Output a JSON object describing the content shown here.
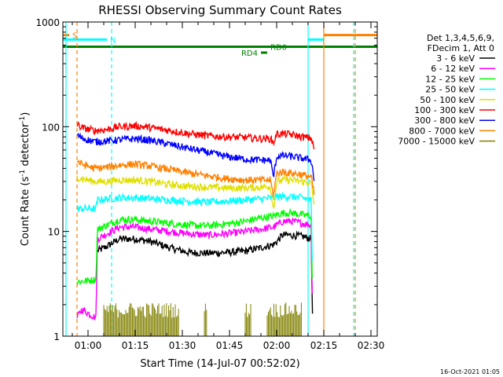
{
  "chart_data": {
    "type": "line",
    "title": "RHESSI Observing Summary Count Rates",
    "xlabel": "Start Time (14-Jul-07 00:52:02)",
    "ylabel_main": "Count Rate (s",
    "ylabel_sup1": "-1",
    "ylabel_mid": " detector",
    "ylabel_sup2": "-1",
    "ylabel_end": ")",
    "x_ticks": [
      "01:00",
      "01:15",
      "01:30",
      "01:45",
      "02:00",
      "02:15",
      "02:30"
    ],
    "x_tick_minutes": [
      60,
      75,
      90,
      105,
      120,
      135,
      150
    ],
    "xlim_minutes": [
      52,
      152
    ],
    "y_scale": "log",
    "ylim": [
      1,
      1000
    ],
    "y_ticks": [
      "1",
      "10",
      "100",
      "1000"
    ],
    "y_tick_values": [
      1,
      10,
      100,
      1000
    ],
    "legend_header": [
      "Det 1,3,4,5,6,9,",
      "FDecim 1, Att 0"
    ],
    "legend_position": "right",
    "timestamp": "16-Oct-2021 01:05",
    "series": [
      {
        "name": "3 - 6 keV",
        "color": "#000000",
        "x": [
          52,
          56.5,
          62.5,
          63,
          66,
          70,
          75,
          80,
          86,
          92,
          98,
          104,
          110,
          115,
          119,
          120,
          122,
          125,
          128,
          131,
          131.5
        ],
        "y": [
          null,
          null,
          null,
          6.5,
          7.2,
          8.5,
          8.5,
          8,
          7,
          6.3,
          6.2,
          6.3,
          6.5,
          7,
          7.5,
          8,
          9.3,
          9.2,
          9,
          8.5,
          1
        ]
      },
      {
        "name": "6 - 12 keV",
        "color": "#ff00ff",
        "x": [
          56.5,
          58,
          62.5,
          63,
          66,
          70,
          75,
          80,
          86,
          92,
          98,
          104,
          110,
          115,
          119,
          120,
          122,
          125,
          128,
          131,
          131.5
        ],
        "y": [
          1.5,
          1.8,
          1.5,
          8.5,
          9.5,
          11,
          11,
          10.5,
          10,
          9.5,
          9.2,
          9.5,
          10,
          10.5,
          11,
          11.5,
          12.5,
          12.5,
          12,
          11.5,
          1
        ]
      },
      {
        "name": "12 - 25 keV",
        "color": "#00ff00",
        "x": [
          56.5,
          60,
          62.5,
          63,
          66,
          70,
          75,
          80,
          86,
          92,
          98,
          104,
          110,
          115,
          119,
          120,
          122,
          125,
          128,
          131,
          131.5
        ],
        "y": [
          3.3,
          3.4,
          3.5,
          10.5,
          11.5,
          13,
          13,
          12.5,
          12,
          11.5,
          11.3,
          11.8,
          12.5,
          13.5,
          14,
          14.5,
          15,
          15,
          14.5,
          14,
          1.5
        ]
      },
      {
        "name": "25 - 50 keV",
        "color": "#00ffff",
        "x": [
          56.5,
          60,
          62.5,
          63,
          66,
          70,
          75,
          80,
          86,
          92,
          98,
          104,
          110,
          115,
          119,
          120,
          122,
          125,
          128,
          131,
          131.5
        ],
        "y": [
          16.5,
          16.5,
          16.5,
          20,
          20.5,
          21,
          21,
          20.5,
          20,
          19.5,
          19,
          19.5,
          20,
          20.5,
          21,
          21.5,
          21.5,
          21.5,
          21,
          20,
          2
        ]
      },
      {
        "name": "50 - 100 keV",
        "color": "#e0e000",
        "x": [
          56.5,
          58,
          62,
          66,
          70,
          75,
          80,
          86,
          92,
          98,
          104,
          110,
          115,
          118,
          119,
          120,
          122,
          125,
          128,
          131,
          132
        ],
        "y": [
          33,
          32,
          30,
          30,
          31,
          31,
          30,
          28,
          27,
          26.5,
          26,
          26,
          26.5,
          27,
          16,
          30,
          31,
          31,
          30,
          29,
          17
        ]
      },
      {
        "name": "100 - 300 keV",
        "color": "#ff0000",
        "x": [
          56.5,
          58,
          62,
          66,
          70,
          75,
          80,
          86,
          92,
          98,
          104,
          110,
          115,
          118,
          119,
          120,
          122,
          125,
          128,
          131,
          132
        ],
        "y": [
          105,
          98,
          92,
          94,
          100,
          102,
          98,
          92,
          86,
          82,
          80,
          79,
          77,
          77,
          70,
          85,
          86,
          84,
          80,
          78,
          60
        ]
      },
      {
        "name": "300 - 800 keV",
        "color": "#0000ff",
        "x": [
          56.5,
          58,
          62,
          66,
          70,
          75,
          80,
          86,
          92,
          98,
          104,
          110,
          115,
          118,
          119,
          120,
          122,
          125,
          128,
          131,
          132
        ],
        "y": [
          83,
          78,
          72,
          73,
          75,
          77,
          74,
          68,
          62,
          57,
          52,
          49,
          48,
          48,
          33,
          52,
          53,
          52,
          50,
          48,
          30
        ]
      },
      {
        "name": "800 - 7000 keV",
        "color": "#ff8000",
        "x": [
          56.5,
          58,
          62,
          66,
          70,
          75,
          80,
          86,
          92,
          98,
          104,
          110,
          115,
          118,
          119,
          120,
          122,
          125,
          128,
          131,
          132
        ],
        "y": [
          47,
          44,
          40,
          41,
          43,
          44,
          42,
          39,
          36,
          34,
          32,
          31,
          31,
          31,
          22,
          36,
          37,
          36,
          35,
          33,
          22
        ]
      },
      {
        "name": "7000 - 15000 keV",
        "color": "#808000",
        "x": [
          77,
          90,
          118,
          119,
          120,
          126,
          128
        ],
        "y": [
          2,
          1.5,
          1.5,
          2,
          1.8,
          1.8,
          2
        ],
        "render": "spikes",
        "spike_ranges": [
          [
            65,
            89
          ],
          [
            97,
            98
          ],
          [
            110,
            112
          ],
          [
            117,
            128
          ]
        ]
      }
    ],
    "flags": [
      {
        "label": "S",
        "color": "#ff8000",
        "x_start": 52,
        "x_end": 54,
        "y": 750,
        "x_end2": [
          135,
          152
        ]
      },
      {
        "label": "N",
        "color": "#00ffff",
        "x_start": 52,
        "x_end": 66,
        "y": 680,
        "x_end2": [
          130,
          135
        ]
      },
      {
        "label": "RD0",
        "color": "#008000",
        "x_start": 52,
        "x_end": 152,
        "y": 580
      },
      {
        "label": "RD4",
        "color": "#008000",
        "x_start": 115,
        "x_end": 117,
        "y": 510
      }
    ],
    "vlines": [
      {
        "x": 53,
        "color": "#00ffff",
        "dash": false
      },
      {
        "x": 56.5,
        "color": "#ff8000",
        "dash": true
      },
      {
        "x": 67.5,
        "color": "#00ffff",
        "dash": true
      },
      {
        "x": 130,
        "color": "#00ffff",
        "dash": false
      },
      {
        "x": 135,
        "color": "#ff8000",
        "dash": false
      },
      {
        "x": 144.5,
        "color": "#00ffff",
        "dash": true
      },
      {
        "x": 145,
        "color": "#ff8000",
        "dash": true
      }
    ]
  }
}
